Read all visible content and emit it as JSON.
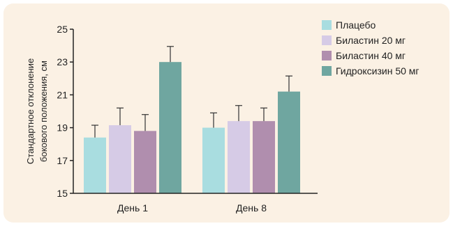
{
  "chart_data": {
    "type": "bar",
    "categories": [
      "День 1",
      "День 8"
    ],
    "ylabel_lines": [
      "Стандартное отклонение",
      "бокового положения, см"
    ],
    "ylim": [
      15,
      25
    ],
    "yticks": [
      15,
      17,
      19,
      21,
      23,
      25
    ],
    "legend_position": "top-right",
    "series": [
      {
        "name": "Плацебо",
        "color": "#a9dde0",
        "values": [
          18.4,
          19.0
        ],
        "errors": [
          0.75,
          0.9
        ]
      },
      {
        "name": "Биластин 20 мг",
        "color": "#d6cbe6",
        "values": [
          19.15,
          19.4
        ],
        "errors": [
          1.05,
          0.95
        ]
      },
      {
        "name": "Биластин 40 мг",
        "color": "#b08eae",
        "values": [
          18.8,
          19.4
        ],
        "errors": [
          1.0,
          0.8
        ]
      },
      {
        "name": "Гидроксизин 50 мг",
        "color": "#6fa6a0",
        "values": [
          23.0,
          21.2
        ],
        "errors": [
          0.95,
          0.95
        ]
      }
    ]
  }
}
